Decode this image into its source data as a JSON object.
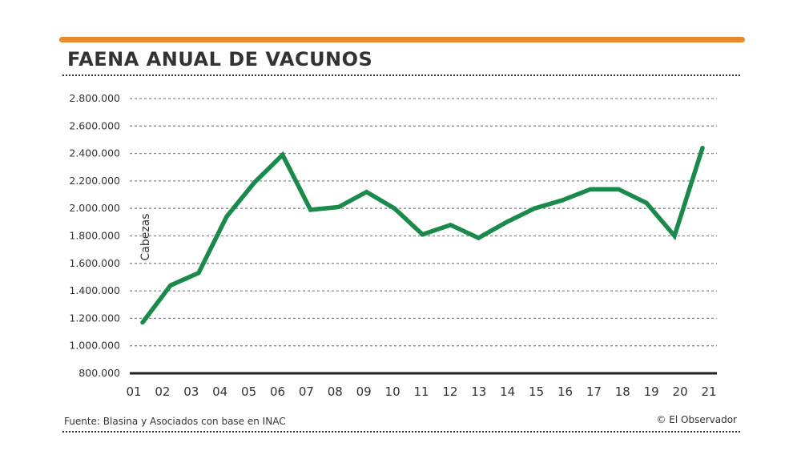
{
  "title": "FAENA ANUAL DE VACUNOS",
  "source": "Fuente: Blasina y Asociados con base en INAC",
  "credit": "© El Observador",
  "colors": {
    "line": "#1a8a4a",
    "accent_bar": "#e8892b"
  },
  "chart_data": {
    "type": "line",
    "title": "FAENA ANUAL DE VACUNOS",
    "ylabel": "Cabezas",
    "xlabel": "",
    "ylim": [
      800000,
      2800000
    ],
    "yticks": [
      800000,
      1000000,
      1200000,
      1400000,
      1600000,
      1800000,
      2000000,
      2200000,
      2400000,
      2600000,
      2800000
    ],
    "ytick_labels": [
      "800.000",
      "1.000.000",
      "1.200.000",
      "1.400.000",
      "1.600.000",
      "1.800.000",
      "2.000.000",
      "2.200.000",
      "2.400.000",
      "2.600.000",
      "2.800.000"
    ],
    "grid": true,
    "categories": [
      "01",
      "02",
      "03",
      "04",
      "05",
      "06",
      "07",
      "08",
      "09",
      "10",
      "11",
      "12",
      "13",
      "14",
      "15",
      "16",
      "17",
      "18",
      "19",
      "20",
      "21"
    ],
    "series": [
      {
        "values": [
          1170000,
          1440000,
          1530000,
          1940000,
          2190000,
          2390000,
          1990000,
          2010000,
          2120000,
          2000000,
          1810000,
          1880000,
          1785000,
          1900000,
          2000000,
          2060000,
          2140000,
          2140000,
          2040000,
          1800000,
          2440000
        ]
      }
    ]
  }
}
